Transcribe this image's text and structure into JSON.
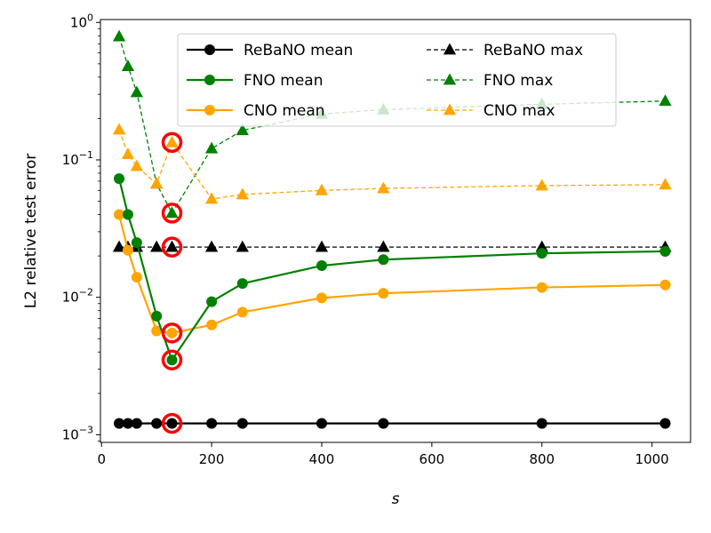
{
  "chart_data": {
    "type": "line",
    "xlabel": "s",
    "ylabel": "L2 relative test error",
    "y_scale": "log",
    "xlim": [
      -2,
      1070
    ],
    "ylim": [
      0.00088,
      1.05
    ],
    "x_ticks": [
      0,
      200,
      400,
      600,
      800,
      1000
    ],
    "x_tick_labels": [
      "0",
      "200",
      "400",
      "600",
      "800",
      "1000"
    ],
    "y_ticks": [
      0.001,
      0.01,
      0.1,
      1
    ],
    "y_tick_labels": [
      {
        "base": "10",
        "exp": "−3"
      },
      {
        "base": "10",
        "exp": "−2"
      },
      {
        "base": "10",
        "exp": "−1"
      },
      {
        "base": "10",
        "exp": "0"
      }
    ],
    "grid": false,
    "legend": {
      "placement": "top-center",
      "columns": 2
    },
    "x": [
      32,
      48,
      64,
      100,
      128,
      200,
      256,
      400,
      512,
      800,
      1024
    ],
    "series": [
      {
        "name": "ReBaNO mean",
        "color": "#000000",
        "style": "solid",
        "marker": "circle",
        "values": [
          0.00121,
          0.00121,
          0.00121,
          0.00121,
          0.00121,
          0.00121,
          0.00121,
          0.00121,
          0.00121,
          0.00121,
          0.00121
        ]
      },
      {
        "name": "FNO mean",
        "color": "#008000",
        "style": "solid",
        "marker": "circle",
        "values": [
          0.073,
          0.04,
          0.025,
          0.0073,
          0.0035,
          0.0093,
          0.0126,
          0.017,
          0.0188,
          0.0209,
          0.0216
        ]
      },
      {
        "name": "CNO mean",
        "color": "#ffa500",
        "style": "solid",
        "marker": "circle",
        "values": [
          0.04,
          0.022,
          0.014,
          0.0057,
          0.0055,
          0.0063,
          0.0078,
          0.0099,
          0.0107,
          0.0118,
          0.0123
        ]
      },
      {
        "name": "ReBaNO max",
        "color": "#000000",
        "style": "dashed",
        "marker": "triangle",
        "values": [
          0.0232,
          0.0232,
          0.0232,
          0.0232,
          0.0232,
          0.0232,
          0.0232,
          0.0232,
          0.0232,
          0.0232,
          0.0232
        ]
      },
      {
        "name": "FNO max",
        "color": "#008000",
        "style": "dashed",
        "marker": "triangle",
        "values": [
          0.79,
          0.48,
          0.31,
          0.067,
          0.041,
          0.121,
          0.164,
          0.216,
          0.232,
          0.254,
          0.268
        ]
      },
      {
        "name": "CNO max",
        "color": "#ffa500",
        "style": "dashed",
        "marker": "triangle",
        "values": [
          0.166,
          0.11,
          0.09,
          0.067,
          0.134,
          0.052,
          0.056,
          0.06,
          0.062,
          0.065,
          0.066
        ]
      }
    ],
    "highlighted_points": [
      {
        "x": 128,
        "y": 0.00121
      },
      {
        "x": 128,
        "y": 0.0035
      },
      {
        "x": 128,
        "y": 0.0055
      },
      {
        "x": 128,
        "y": 0.0232
      },
      {
        "x": 128,
        "y": 0.041
      },
      {
        "x": 128,
        "y": 0.134
      }
    ],
    "highlight_color": "#ff0000"
  }
}
